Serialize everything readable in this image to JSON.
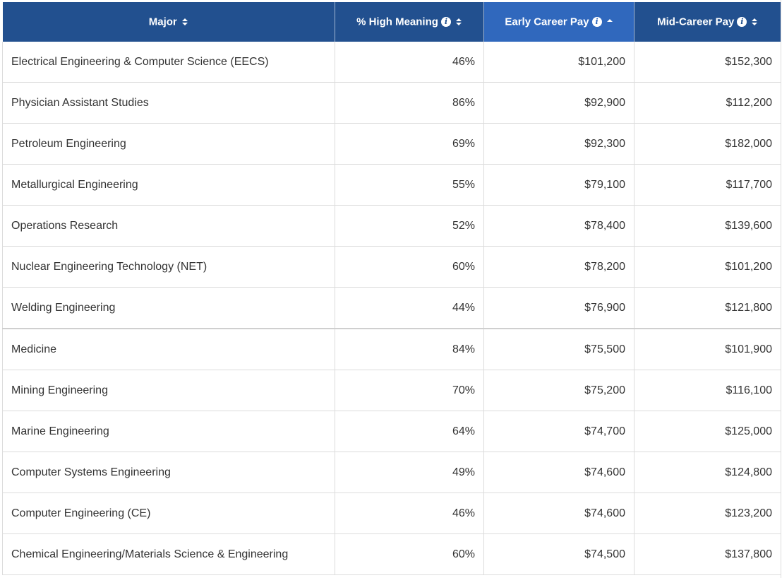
{
  "headers": {
    "major": "Major",
    "high_meaning": "% High Meaning",
    "early_pay": "Early Career Pay",
    "mid_pay": "Mid-Career Pay"
  },
  "icons": {
    "info": "info-icon",
    "sort": "sort-both-icon",
    "sort_active": "sort-up-icon"
  },
  "colors": {
    "header_bg": "#22508f",
    "header_active_bg": "#3068bd",
    "text": "#333333"
  },
  "sorted_column": "Early Career Pay",
  "sort_direction": "descending",
  "rows": [
    {
      "major": "Electrical Engineering & Computer Science (EECS)",
      "high_meaning": "46%",
      "early": "$101,200",
      "mid": "$152,300"
    },
    {
      "major": "Physician Assistant Studies",
      "high_meaning": "86%",
      "early": "$92,900",
      "mid": "$112,200"
    },
    {
      "major": "Petroleum Engineering",
      "high_meaning": "69%",
      "early": "$92,300",
      "mid": "$182,000"
    },
    {
      "major": "Metallurgical Engineering",
      "high_meaning": "55%",
      "early": "$79,100",
      "mid": "$117,700"
    },
    {
      "major": "Operations Research",
      "high_meaning": "52%",
      "early": "$78,400",
      "mid": "$139,600"
    },
    {
      "major": "Nuclear Engineering Technology (NET)",
      "high_meaning": "60%",
      "early": "$78,200",
      "mid": "$101,200"
    },
    {
      "major": "Welding Engineering",
      "high_meaning": "44%",
      "early": "$76,900",
      "mid": "$121,800"
    },
    {
      "major": "Medicine",
      "high_meaning": "84%",
      "early": "$75,500",
      "mid": "$101,900"
    },
    {
      "major": "Mining Engineering",
      "high_meaning": "70%",
      "early": "$75,200",
      "mid": "$116,100"
    },
    {
      "major": "Marine Engineering",
      "high_meaning": "64%",
      "early": "$74,700",
      "mid": "$125,000"
    },
    {
      "major": "Computer Systems Engineering",
      "high_meaning": "49%",
      "early": "$74,600",
      "mid": "$124,800"
    },
    {
      "major": "Computer Engineering (CE)",
      "high_meaning": "46%",
      "early": "$74,600",
      "mid": "$123,200"
    },
    {
      "major": "Chemical Engineering/Materials Science & Engineering",
      "high_meaning": "60%",
      "early": "$74,500",
      "mid": "$137,800"
    }
  ]
}
